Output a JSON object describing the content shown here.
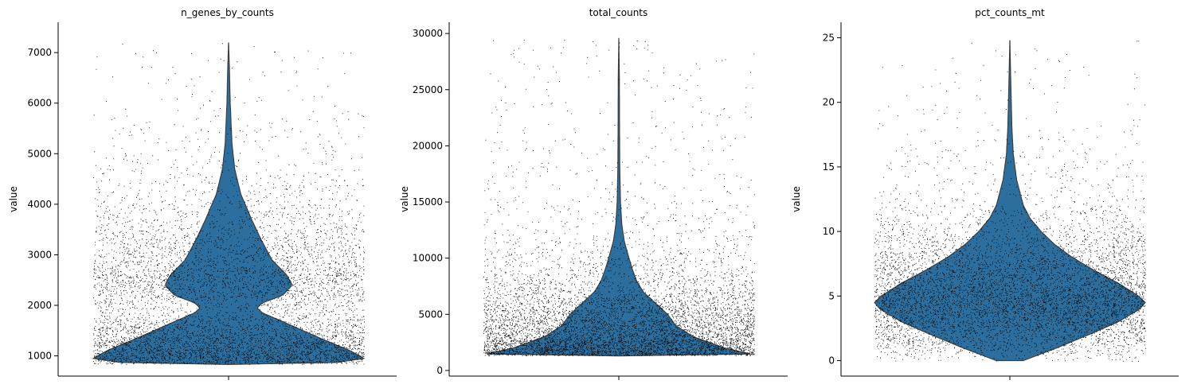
{
  "chart_data": [
    {
      "type": "violin",
      "title": "n_genes_by_counts",
      "ylabel": "value",
      "xlabel": "",
      "ylim": [
        600,
        7600
      ],
      "yticks": [
        1000,
        2000,
        3000,
        4000,
        5000,
        6000,
        7000
      ],
      "color": "#2c6f9e",
      "jitter_points": true,
      "range": [
        830,
        7200
      ],
      "density_width_fraction": [
        [
          830,
          0.0
        ],
        [
          870,
          0.8
        ],
        [
          950,
          1.0
        ],
        [
          1100,
          0.9
        ],
        [
          1300,
          0.72
        ],
        [
          1500,
          0.55
        ],
        [
          1700,
          0.38
        ],
        [
          1850,
          0.25
        ],
        [
          1950,
          0.21
        ],
        [
          2050,
          0.25
        ],
        [
          2200,
          0.4
        ],
        [
          2400,
          0.47
        ],
        [
          2600,
          0.43
        ],
        [
          2900,
          0.32
        ],
        [
          3300,
          0.24
        ],
        [
          3700,
          0.17
        ],
        [
          4200,
          0.09
        ],
        [
          4700,
          0.045
        ],
        [
          5200,
          0.025
        ],
        [
          6000,
          0.012
        ],
        [
          6700,
          0.006
        ],
        [
          7200,
          0.0
        ]
      ]
    },
    {
      "type": "violin",
      "title": "total_counts",
      "ylabel": "value",
      "xlabel": "",
      "ylim": [
        -500,
        31000
      ],
      "yticks": [
        0,
        5000,
        10000,
        15000,
        20000,
        25000,
        30000
      ],
      "color": "#2c6f9e",
      "jitter_points": true,
      "range": [
        1300,
        29600
      ],
      "density_width_fraction": [
        [
          1300,
          0.0
        ],
        [
          1400,
          1.0
        ],
        [
          2000,
          0.78
        ],
        [
          3000,
          0.55
        ],
        [
          4000,
          0.42
        ],
        [
          5000,
          0.36
        ],
        [
          6000,
          0.27
        ],
        [
          7000,
          0.18
        ],
        [
          8000,
          0.13
        ],
        [
          9000,
          0.1
        ],
        [
          10000,
          0.075
        ],
        [
          11500,
          0.04
        ],
        [
          13000,
          0.022
        ],
        [
          15000,
          0.012
        ],
        [
          18000,
          0.007
        ],
        [
          22000,
          0.005
        ],
        [
          26000,
          0.004
        ],
        [
          29600,
          0.0
        ]
      ]
    },
    {
      "type": "violin",
      "title": "pct_counts_mt",
      "ylabel": "value",
      "xlabel": "",
      "ylim": [
        -1.2,
        26.2
      ],
      "yticks": [
        0,
        5,
        10,
        15,
        20,
        25
      ],
      "color": "#2c6f9e",
      "jitter_points": true,
      "range": [
        0.0,
        24.8
      ],
      "density_width_fraction": [
        [
          0.0,
          0.1
        ],
        [
          1.0,
          0.35
        ],
        [
          2.0,
          0.58
        ],
        [
          3.0,
          0.8
        ],
        [
          4.0,
          0.96
        ],
        [
          4.5,
          1.0
        ],
        [
          5.0,
          0.95
        ],
        [
          6.0,
          0.8
        ],
        [
          7.0,
          0.62
        ],
        [
          8.0,
          0.46
        ],
        [
          9.0,
          0.33
        ],
        [
          10.0,
          0.23
        ],
        [
          11.0,
          0.15
        ],
        [
          12.0,
          0.1
        ],
        [
          14.0,
          0.05
        ],
        [
          16.0,
          0.025
        ],
        [
          18.0,
          0.015
        ],
        [
          21.0,
          0.008
        ],
        [
          24.8,
          0.0
        ]
      ]
    }
  ]
}
